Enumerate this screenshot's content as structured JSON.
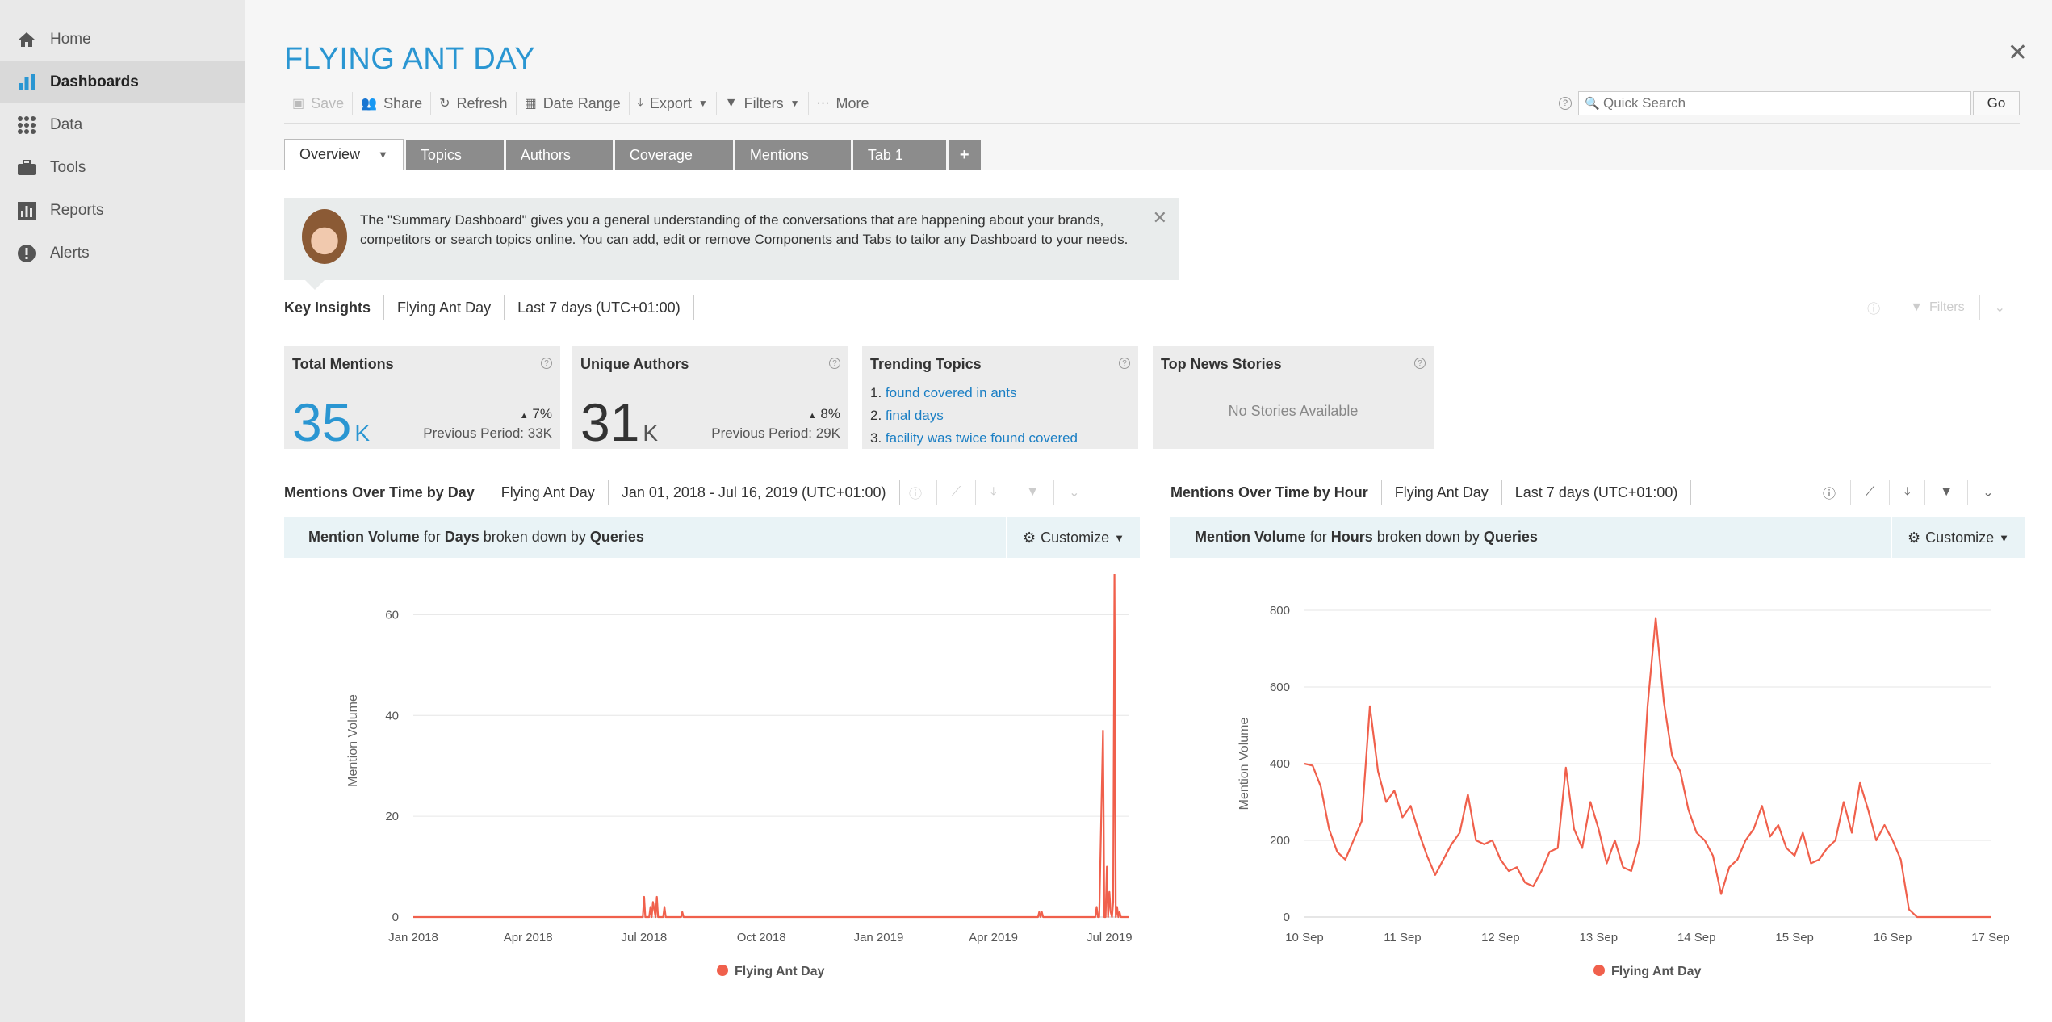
{
  "sidebar": {
    "items": [
      {
        "label": "Home",
        "icon": "home-icon"
      },
      {
        "label": "Dashboards",
        "icon": "bar-chart-icon"
      },
      {
        "label": "Data",
        "icon": "grid-icon"
      },
      {
        "label": "Tools",
        "icon": "briefcase-icon"
      },
      {
        "label": "Reports",
        "icon": "report-icon"
      },
      {
        "label": "Alerts",
        "icon": "alert-icon"
      }
    ],
    "active": "Dashboards"
  },
  "header": {
    "title": "FLYING ANT DAY",
    "toolbar": {
      "save": "Save",
      "share": "Share",
      "refresh": "Refresh",
      "date_range": "Date Range",
      "export": "Export",
      "filters": "Filters",
      "more": "More"
    },
    "search": {
      "placeholder": "Quick Search",
      "go": "Go"
    }
  },
  "tabs": [
    {
      "label": "Overview",
      "active": true
    },
    {
      "label": "Topics"
    },
    {
      "label": "Authors"
    },
    {
      "label": "Coverage"
    },
    {
      "label": "Mentions"
    },
    {
      "label": "Tab 1"
    },
    {
      "label": "+"
    }
  ],
  "notice": {
    "text": "The \"Summary Dashboard\" gives you a general understanding of the conversations that are happening about your brands, competitors or search topics online. You can add, edit or remove Components and Tabs to tailor any Dashboard to your needs."
  },
  "key_insights": {
    "label": "Key Insights",
    "query": "Flying Ant Day",
    "period": "Last 7 days (UTC+01:00)",
    "filters": "Filters"
  },
  "cards": {
    "total_mentions": {
      "title": "Total Mentions",
      "value": "35",
      "unit": "K",
      "change": "7%",
      "prev": "Previous Period: 33K"
    },
    "unique_authors": {
      "title": "Unique Authors",
      "value": "31",
      "unit": "K",
      "change": "8%",
      "prev": "Previous Period: 29K"
    },
    "trending_topics": {
      "title": "Trending Topics",
      "items": [
        "found covered in ants",
        "final days",
        "facility was twice found covered"
      ]
    },
    "top_news": {
      "title": "Top News Stories",
      "empty": "No Stories Available"
    }
  },
  "chart_left_bar": {
    "label": "Mentions Over Time by Day",
    "query": "Flying Ant Day",
    "period": "Jan 01, 2018 - Jul 16, 2019 (UTC+01:00)"
  },
  "chart_right_bar": {
    "label": "Mentions Over Time by Hour",
    "query": "Flying Ant Day",
    "period": "Last 7 days (UTC+01:00)"
  },
  "chart_left_head": {
    "pre": "Mention Volume",
    "for": "for",
    "unit": "Days",
    "mid": "broken down by",
    "by": "Queries",
    "customize": "Customize"
  },
  "chart_right_head": {
    "pre": "Mention Volume",
    "for": "for",
    "unit": "Hours",
    "mid": "broken down by",
    "by": "Queries",
    "customize": "Customize"
  },
  "colors": {
    "accent": "#2a96d2",
    "series": "#f0604c",
    "link": "#1b7fc4"
  },
  "chart_data": [
    {
      "type": "line",
      "title": "",
      "xlabel": "",
      "ylabel": "Mention Volume",
      "ylim": [
        0,
        70
      ],
      "yticks": [
        0,
        20,
        40,
        60
      ],
      "xticks": [
        "Jan 2018",
        "Apr 2018",
        "Jul 2018",
        "Oct 2018",
        "Jan 2019",
        "Apr 2019",
        "Jul 2019"
      ],
      "xdomain_days": [
        0,
        561
      ],
      "xtick_days": [
        0,
        90,
        181,
        273,
        365,
        455,
        546
      ],
      "legend": "bottom",
      "series": [
        {
          "name": "Flying Ant Day",
          "x": [
            0,
            180,
            181,
            182,
            185,
            186,
            187,
            188,
            190,
            191,
            192,
            193,
            196,
            197,
            198,
            200,
            210,
            211,
            212,
            490,
            491,
            492,
            493,
            494,
            495,
            535,
            536,
            537,
            538,
            541,
            542,
            543,
            544,
            545,
            546,
            547,
            548,
            549,
            550,
            551,
            552,
            553,
            554,
            555,
            556,
            557,
            558,
            561
          ],
          "y": [
            0,
            0,
            4,
            0,
            0,
            2,
            0,
            3,
            0,
            4,
            0,
            0,
            0,
            2,
            0,
            0,
            0,
            1,
            0,
            0,
            1,
            0,
            1,
            0,
            0,
            0,
            2,
            0,
            0,
            37,
            0,
            0,
            10,
            0,
            5,
            1,
            0,
            3,
            68,
            0,
            2,
            0,
            1,
            0,
            0,
            0,
            0,
            0
          ]
        }
      ]
    },
    {
      "type": "line",
      "title": "",
      "xlabel": "",
      "ylabel": "Mention Volume",
      "ylim": [
        0,
        800
      ],
      "yticks": [
        0,
        200,
        400,
        600,
        800
      ],
      "xticks": [
        "10 Sep",
        "11 Sep",
        "12 Sep",
        "13 Sep",
        "14 Sep",
        "15 Sep",
        "16 Sep",
        "17 Sep"
      ],
      "xdomain_hours": [
        0,
        168
      ],
      "xtick_hours": [
        0,
        24,
        48,
        72,
        96,
        120,
        144,
        168
      ],
      "legend": "bottom",
      "series": [
        {
          "name": "Flying Ant Day",
          "x": [
            0,
            2,
            4,
            6,
            8,
            10,
            12,
            14,
            16,
            18,
            20,
            22,
            24,
            26,
            28,
            30,
            32,
            34,
            36,
            38,
            40,
            42,
            44,
            46,
            48,
            50,
            52,
            54,
            56,
            58,
            60,
            62,
            64,
            66,
            68,
            70,
            72,
            74,
            76,
            78,
            80,
            82,
            84,
            86,
            88,
            90,
            92,
            94,
            96,
            98,
            100,
            102,
            104,
            106,
            108,
            110,
            112,
            114,
            116,
            118,
            120,
            122,
            124,
            126,
            128,
            130,
            132,
            134,
            136,
            138,
            140,
            142,
            144,
            146,
            148,
            150,
            152,
            154,
            156,
            158,
            160,
            168
          ],
          "y": [
            400,
            395,
            340,
            230,
            170,
            150,
            200,
            250,
            550,
            380,
            300,
            330,
            260,
            290,
            220,
            160,
            110,
            150,
            190,
            220,
            320,
            200,
            190,
            200,
            150,
            120,
            130,
            90,
            80,
            120,
            170,
            180,
            390,
            230,
            180,
            300,
            230,
            140,
            200,
            130,
            120,
            200,
            550,
            780,
            560,
            420,
            380,
            280,
            220,
            200,
            160,
            60,
            130,
            150,
            200,
            230,
            290,
            210,
            240,
            180,
            160,
            220,
            140,
            150,
            180,
            200,
            300,
            220,
            350,
            280,
            200,
            240,
            200,
            150,
            20,
            0,
            0,
            0,
            0,
            0,
            0,
            0
          ]
        }
      ]
    }
  ]
}
